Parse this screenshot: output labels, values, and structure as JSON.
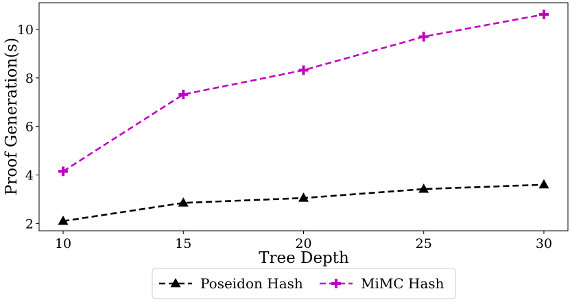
{
  "chart_data": {
    "type": "line",
    "title": "",
    "xlabel": "Tree Depth",
    "ylabel": "Proof Generation(s)",
    "x": [
      10,
      15,
      20,
      25,
      30
    ],
    "xticks": [
      "10",
      "15",
      "20",
      "25",
      "30"
    ],
    "yticks": [
      "2",
      "4",
      "6",
      "8",
      "10"
    ],
    "xlim": [
      9,
      31
    ],
    "ylim": [
      1.7,
      11.1
    ],
    "grid": false,
    "legend_position": "bottom-center",
    "series": [
      {
        "name": "Poseidon Hash",
        "values": [
          2.1,
          2.85,
          3.05,
          3.42,
          3.6
        ],
        "color": "#000000",
        "marker": "triangle",
        "line_style": "dashed"
      },
      {
        "name": "MiMC Hash",
        "values": [
          4.15,
          7.32,
          8.32,
          9.7,
          10.62
        ],
        "color": "#c000c0",
        "marker": "plus",
        "line_style": "dashed"
      }
    ]
  }
}
